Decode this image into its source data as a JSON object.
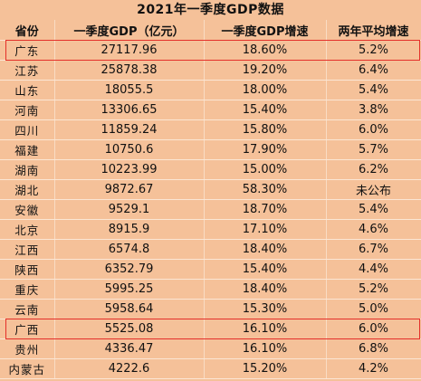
{
  "title": "2021年一季度GDP数据",
  "columns": [
    "省份",
    "一季度GDP（亿元）",
    "一季度GDP增速",
    "两年平均增速"
  ],
  "rows": [
    {
      "province": "广东",
      "gdp": "27117.96",
      "growth": "18.60%",
      "avg": "5.2%"
    },
    {
      "province": "江苏",
      "gdp": "25878.38",
      "growth": "19.20%",
      "avg": "6.4%"
    },
    {
      "province": "山东",
      "gdp": "18055.5",
      "growth": "18.00%",
      "avg": "5.4%"
    },
    {
      "province": "河南",
      "gdp": "13306.65",
      "growth": "15.40%",
      "avg": "3.8%"
    },
    {
      "province": "四川",
      "gdp": "11859.24",
      "growth": "15.80%",
      "avg": "6.0%"
    },
    {
      "province": "福建",
      "gdp": "10750.6",
      "growth": "17.90%",
      "avg": "5.7%"
    },
    {
      "province": "湖南",
      "gdp": "10223.99",
      "growth": "15.00%",
      "avg": "6.2%"
    },
    {
      "province": "湖北",
      "gdp": "9872.67",
      "growth": "58.30%",
      "avg": "未公布"
    },
    {
      "province": "安徽",
      "gdp": "9529.1",
      "growth": "18.70%",
      "avg": "5.4%"
    },
    {
      "province": "北京",
      "gdp": "8915.9",
      "growth": "17.10%",
      "avg": "4.6%"
    },
    {
      "province": "江西",
      "gdp": "6574.8",
      "growth": "18.40%",
      "avg": "6.7%"
    },
    {
      "province": "陕西",
      "gdp": "6352.79",
      "growth": "15.40%",
      "avg": "4.4%"
    },
    {
      "province": "重庆",
      "gdp": "5995.25",
      "growth": "18.40%",
      "avg": "5.2%"
    },
    {
      "province": "云南",
      "gdp": "5958.64",
      "growth": "15.30%",
      "avg": "5.0%"
    },
    {
      "province": "广西",
      "gdp": "5525.08",
      "growth": "16.10%",
      "avg": "6.0%"
    },
    {
      "province": "贵州",
      "gdp": "4336.47",
      "growth": "16.10%",
      "avg": "6.8%"
    },
    {
      "province": "内蒙古",
      "gdp": "4222.6",
      "growth": "15.20%",
      "avg": "4.2%"
    }
  ],
  "highlighted_rows": [
    "广东",
    "广西"
  ],
  "colors": {
    "background": "#f5c199",
    "highlight_border": "#e4302a"
  }
}
